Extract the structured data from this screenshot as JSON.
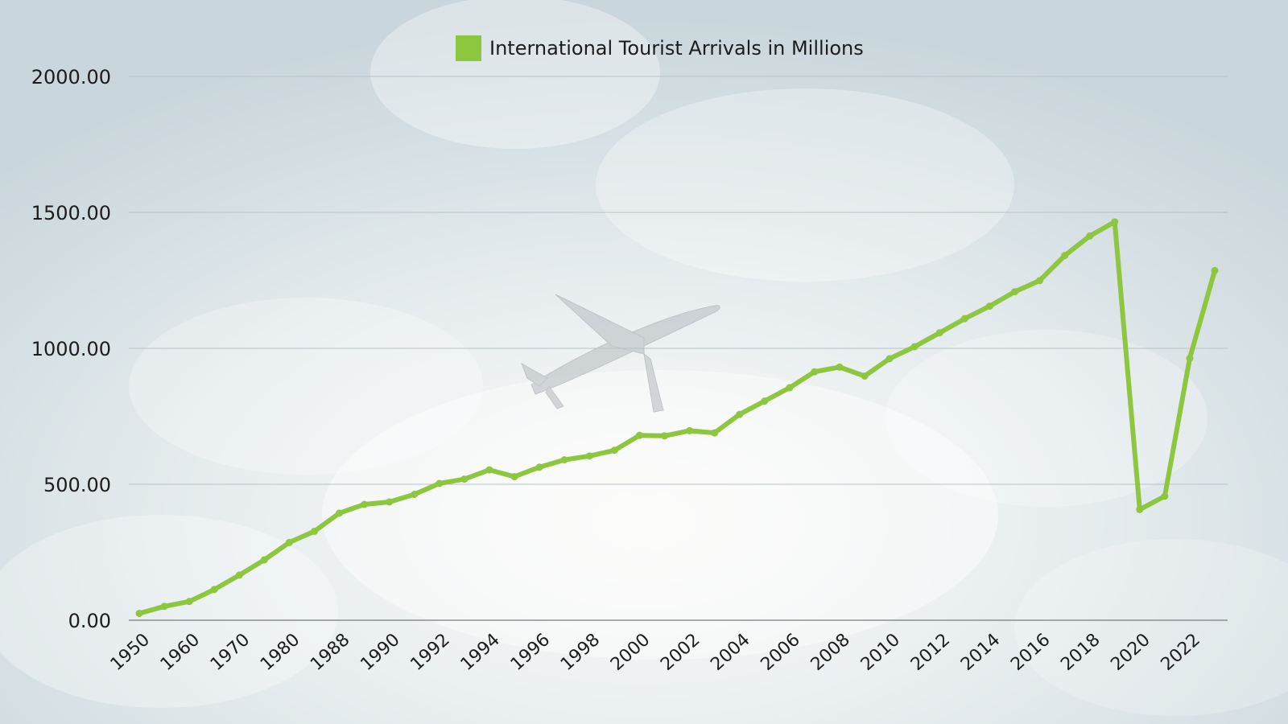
{
  "colors": {
    "line": "#8dc63f",
    "grid": "#b8c2c6",
    "axis": "#8a8f92",
    "text": "#1c1c1c"
  },
  "decor": {
    "background_icon": "airplane-icon"
  },
  "chart_data": {
    "type": "line",
    "title": "",
    "xlabel": "",
    "ylabel": "",
    "ylim": [
      0,
      2000
    ],
    "yticks": [
      "0.00",
      "500.00",
      "1000.00",
      "1500.00",
      "2000.00"
    ],
    "legend": "top-center",
    "grid": true,
    "categories": [
      "1950",
      "1955",
      "1960",
      "1965",
      "1970",
      "1975",
      "1980",
      "1985",
      "1988",
      "1989",
      "1990",
      "1991",
      "1992",
      "1993",
      "1994",
      "1995",
      "1996",
      "1997",
      "1998",
      "1999",
      "2000",
      "2001",
      "2002",
      "2003",
      "2004",
      "2005",
      "2006",
      "2007",
      "2008",
      "2009",
      "2010",
      "2011",
      "2012",
      "2013",
      "2014",
      "2015",
      "2016",
      "2017",
      "2018",
      "2019",
      "2020",
      "2021",
      "2022",
      "2023"
    ],
    "x_tick_labels": [
      "1950",
      "1960",
      "1970",
      "1980",
      "1988",
      "1990",
      "1992",
      "1994",
      "1996",
      "1998",
      "2000",
      "2002",
      "2004",
      "2006",
      "2008",
      "2010",
      "2012",
      "2014",
      "2016",
      "2018",
      "2020",
      "2022"
    ],
    "series": [
      {
        "name": "International Tourist Arrivals in Millions",
        "values": [
          25,
          51,
          69,
          113,
          166,
          222,
          286,
          327,
          394,
          426,
          435,
          463,
          503,
          519,
          553,
          528,
          563,
          590,
          604,
          625,
          680,
          678,
          697,
          689,
          757,
          806,
          855,
          914,
          931,
          898,
          962,
          1006,
          1057,
          1109,
          1155,
          1208,
          1249,
          1341,
          1413,
          1465,
          407,
          456,
          963,
          1286
        ]
      }
    ]
  }
}
